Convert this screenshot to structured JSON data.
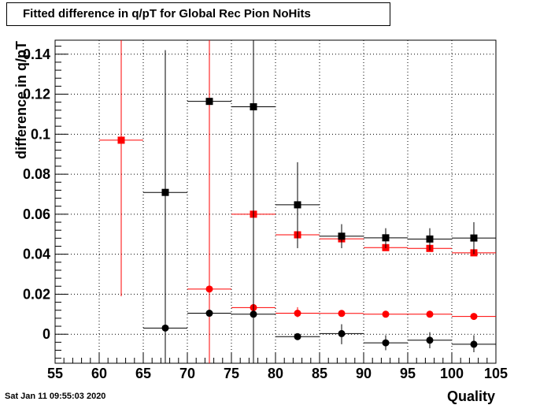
{
  "chart_data": {
    "type": "scatter",
    "title": "Fitted difference in q/pT for Global Rec Pion NoHits",
    "xlabel": "Quality",
    "ylabel": "difference in q/pT",
    "xlim": [
      55,
      105
    ],
    "ylim": [
      -0.0145,
      0.147
    ],
    "x_ticks": [
      55,
      60,
      65,
      70,
      75,
      80,
      85,
      90,
      95,
      100,
      105
    ],
    "y_ticks": [
      0,
      0.02,
      0.04,
      0.06,
      0.08,
      0.1,
      0.12,
      0.14
    ],
    "y_tick_labels": [
      "0",
      "0.02",
      "0.04",
      "0.06",
      "0.08",
      "0.1",
      "0.12",
      "0.14"
    ],
    "grid": true,
    "bin_half_width": 2.5,
    "series": [
      {
        "marker": "square",
        "color": "#ff0000",
        "points": [
          {
            "x": 62.5,
            "y": 0.097,
            "ylo": 0.019,
            "yhi": 0.147
          },
          {
            "x": 72.5,
            "y": 0.0,
            "ylo": -0.0145,
            "yhi": 0.147,
            "hidden": true
          },
          {
            "x": 77.5,
            "y": 0.06,
            "ylo": 0.06,
            "yhi": 0.06
          },
          {
            "x": 82.5,
            "y": 0.0497,
            "ylo": 0.0497,
            "yhi": 0.0497
          },
          {
            "x": 87.5,
            "y": 0.0477,
            "ylo": 0.0477,
            "yhi": 0.0477
          },
          {
            "x": 92.5,
            "y": 0.0433,
            "ylo": 0.0433,
            "yhi": 0.0433
          },
          {
            "x": 97.5,
            "y": 0.0429,
            "ylo": 0.0429,
            "yhi": 0.0429
          },
          {
            "x": 102.5,
            "y": 0.0407,
            "ylo": 0.0407,
            "yhi": 0.0407
          }
        ]
      },
      {
        "marker": "circle",
        "color": "#ff0000",
        "points": [
          {
            "x": 72.5,
            "y": 0.0226,
            "ylo": -0.0145,
            "yhi": 0.147
          },
          {
            "x": 77.5,
            "y": 0.0133,
            "ylo": 0.011,
            "yhi": 0.016
          },
          {
            "x": 82.5,
            "y": 0.0105,
            "ylo": 0.0085,
            "yhi": 0.0135
          },
          {
            "x": 87.5,
            "y": 0.0104,
            "ylo": 0.009,
            "yhi": 0.012
          },
          {
            "x": 92.5,
            "y": 0.01,
            "ylo": 0.009,
            "yhi": 0.011
          },
          {
            "x": 97.5,
            "y": 0.01,
            "ylo": 0.009,
            "yhi": 0.011
          },
          {
            "x": 102.5,
            "y": 0.0089,
            "ylo": 0.008,
            "yhi": 0.01
          }
        ]
      },
      {
        "marker": "square",
        "color": "#000000",
        "points": [
          {
            "x": 67.5,
            "y": 0.0709,
            "ylo": -0.0145,
            "yhi": 0.142
          },
          {
            "x": 72.5,
            "y": 0.1164,
            "ylo": 0.1164,
            "yhi": 0.1164
          },
          {
            "x": 77.5,
            "y": 0.1137,
            "ylo": -0.0145,
            "yhi": 0.147
          },
          {
            "x": 82.5,
            "y": 0.0647,
            "ylo": 0.043,
            "yhi": 0.086
          },
          {
            "x": 87.5,
            "y": 0.049,
            "ylo": 0.043,
            "yhi": 0.055
          },
          {
            "x": 92.5,
            "y": 0.0482,
            "ylo": 0.043,
            "yhi": 0.053
          },
          {
            "x": 97.5,
            "y": 0.0476,
            "ylo": 0.042,
            "yhi": 0.053
          },
          {
            "x": 102.5,
            "y": 0.0481,
            "ylo": 0.04,
            "yhi": 0.056
          }
        ]
      },
      {
        "marker": "circle",
        "color": "#000000",
        "points": [
          {
            "x": 67.5,
            "y": 0.0031,
            "ylo": -0.0145,
            "yhi": 0.142
          },
          {
            "x": 72.5,
            "y": 0.0105,
            "ylo": 0.0105,
            "yhi": 0.0105
          },
          {
            "x": 77.5,
            "y": 0.01,
            "ylo": -0.0145,
            "yhi": 0.147
          },
          {
            "x": 82.5,
            "y": -0.0012,
            "ylo": -0.0012,
            "yhi": -0.0012
          },
          {
            "x": 87.5,
            "y": 0.0003,
            "ylo": -0.005,
            "yhi": 0.005
          },
          {
            "x": 92.5,
            "y": -0.0043,
            "ylo": -0.008,
            "yhi": -0.0005
          },
          {
            "x": 97.5,
            "y": -0.003,
            "ylo": -0.007,
            "yhi": 0.001
          },
          {
            "x": 102.5,
            "y": -0.005,
            "ylo": -0.009,
            "yhi": -0.0005
          }
        ]
      }
    ]
  },
  "footer": {
    "timestamp": "Sat Jan 11 09:55:03 2020"
  }
}
